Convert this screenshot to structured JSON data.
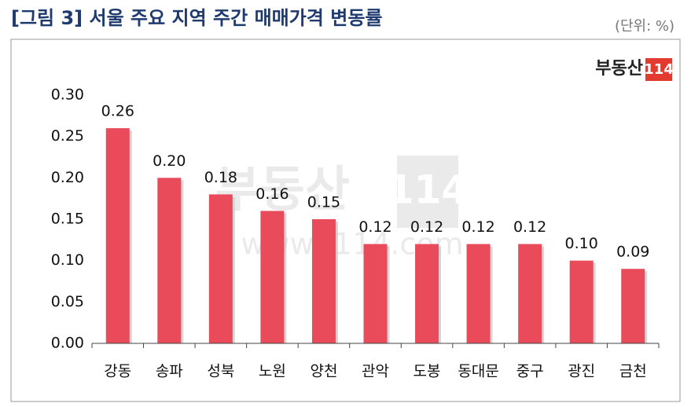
{
  "chart_data": {
    "type": "bar",
    "title": "[그림 3] 서울 주요 지역 주간 매매가격 변동률",
    "unit_note": "(단위: %)",
    "logo": {
      "text": "부동산",
      "box": "114"
    },
    "watermark": {
      "text": "부동산",
      "box": "114",
      "url": "www.r114.com"
    },
    "categories": [
      "강동",
      "송파",
      "성북",
      "노원",
      "양천",
      "관악",
      "도봉",
      "동대문",
      "중구",
      "광진",
      "금천"
    ],
    "values": [
      0.26,
      0.2,
      0.18,
      0.16,
      0.15,
      0.12,
      0.12,
      0.12,
      0.12,
      0.1,
      0.09
    ],
    "value_labels": [
      "0.26",
      "0.20",
      "0.18",
      "0.16",
      "0.15",
      "0.12",
      "0.12",
      "0.12",
      "0.12",
      "0.10",
      "0.09"
    ],
    "color": "#e94b5b",
    "ylim": [
      0,
      0.3
    ],
    "yticks": [
      {
        "value": 0,
        "label": "0.00"
      },
      {
        "value": 0.05,
        "label": "0.05"
      },
      {
        "value": 0.1,
        "label": "0.10"
      },
      {
        "value": 0.15,
        "label": "0.15"
      },
      {
        "value": 0.2,
        "label": "0.20"
      },
      {
        "value": 0.25,
        "label": "0.25"
      },
      {
        "value": 0.3,
        "label": "0.30"
      }
    ],
    "grid": false
  }
}
